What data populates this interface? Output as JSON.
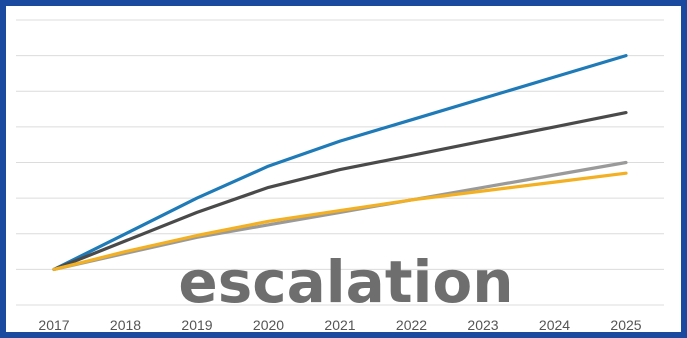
{
  "overlay_text": "escalation",
  "chart_data": {
    "type": "line",
    "title": "",
    "xlabel": "",
    "ylabel": "",
    "x": [
      "2017",
      "2018",
      "2019",
      "2020",
      "2021",
      "2022",
      "2023",
      "2024",
      "2025"
    ],
    "ylim": [
      0,
      8
    ],
    "y_gridlines": 8,
    "grid": true,
    "legend": "none",
    "series": [
      {
        "color": "#1f7ab8",
        "values": [
          1.0,
          2.0,
          3.0,
          3.9,
          4.6,
          5.2,
          5.8,
          6.4,
          7.0
        ]
      },
      {
        "color": "#4a4a4a",
        "values": [
          1.0,
          1.8,
          2.6,
          3.3,
          3.8,
          4.2,
          4.6,
          5.0,
          5.4
        ]
      },
      {
        "color": "#9a9a9a",
        "values": [
          1.0,
          1.45,
          1.9,
          2.25,
          2.6,
          2.95,
          3.3,
          3.65,
          4.0
        ]
      },
      {
        "color": "#f2b022",
        "values": [
          1.0,
          1.5,
          1.95,
          2.35,
          2.65,
          2.95,
          3.2,
          3.45,
          3.7
        ]
      }
    ]
  }
}
